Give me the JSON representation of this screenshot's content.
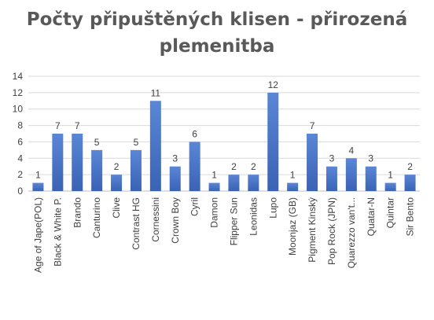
{
  "chart_data": {
    "type": "bar",
    "title_lines": [
      "Počty připuštěných klisen - přirozená",
      "plemenitba"
    ],
    "categories": [
      "Age of Jape(POL)",
      "Black & White P.",
      "Brando",
      "Canturino",
      "Clive",
      "Contrast HG",
      "Cornessini",
      "Crown Boy",
      "Cyril",
      "Damon",
      "Flipper Sun",
      "Leonidas",
      "Lupo",
      "Moonjaz (GB)",
      "Pigment Kinský",
      "Pop Rock (JPN)",
      "Quarezzo van't...",
      "Quatar-N",
      "Quintar",
      "Sir Bento"
    ],
    "values": [
      1,
      7,
      7,
      5,
      2,
      5,
      11,
      3,
      6,
      1,
      2,
      2,
      12,
      1,
      7,
      3,
      4,
      3,
      1,
      2
    ],
    "ylim": [
      0,
      14
    ],
    "yticks": [
      0,
      2,
      4,
      6,
      8,
      10,
      12,
      14
    ],
    "grid": true,
    "legend": "none",
    "data_labels": true,
    "colors": {
      "bar_top": "#5b86d6",
      "bar_bottom": "#3a62b5",
      "grid": "#d9d9d9",
      "text": "#404040",
      "title": "#595959"
    }
  }
}
